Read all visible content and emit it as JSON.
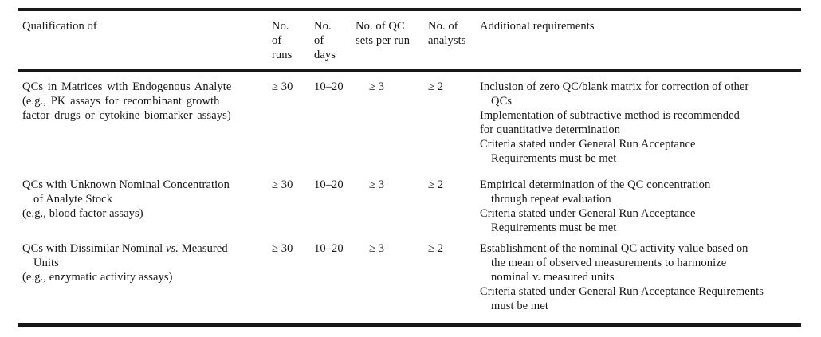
{
  "table": {
    "columns": [
      {
        "id": "qualification",
        "label_lines": [
          "Qualification of"
        ]
      },
      {
        "id": "runs",
        "label_lines": [
          "No.",
          "of",
          "runs"
        ]
      },
      {
        "id": "days",
        "label_lines": [
          "No.",
          "of",
          "days"
        ]
      },
      {
        "id": "qc-sets",
        "label_lines": [
          "No. of QC",
          "sets per run"
        ]
      },
      {
        "id": "analysts",
        "label_lines": [
          "No. of",
          "analysts"
        ]
      },
      {
        "id": "additional",
        "label_lines": [
          "Additional requirements"
        ]
      }
    ],
    "rows": [
      {
        "qualification": [
          {
            "t": "QCs in Matrices with Endogenous Analyte"
          },
          {
            "t": "(e.g., PK assays for recombinant growth"
          },
          {
            "t": "factor drugs or cytokine biomarker assays)"
          }
        ],
        "no_of_runs": "≥ 30",
        "no_of_days": "10–20",
        "qc_sets_per_run": "≥ 3",
        "no_of_analysts": "≥ 2",
        "additional_requirements": [
          {
            "t": "Inclusion of zero QC/blank matrix for correction of other"
          },
          {
            "t": "QCs",
            "ind": true
          },
          {
            "t": "Implementation of subtractive method is recommended"
          },
          {
            "t": "for quantitative determination"
          },
          {
            "t": "Criteria stated under General Run Acceptance"
          },
          {
            "t": "Requirements must be met",
            "ind": true
          }
        ]
      },
      {
        "qualification": [
          {
            "t": "QCs with Unknown Nominal Concentration"
          },
          {
            "t": "of Analyte Stock",
            "ind": true
          },
          {
            "t": "(e.g., blood factor assays)"
          }
        ],
        "no_of_runs": "≥ 30",
        "no_of_days": "10–20",
        "qc_sets_per_run": "≥ 3",
        "no_of_analysts": "≥ 2",
        "additional_requirements": [
          {
            "t": "Empirical determination of the QC concentration"
          },
          {
            "t": "through repeat evaluation",
            "ind": true
          },
          {
            "t": "Criteria stated under General Run Acceptance"
          },
          {
            "t": "Requirements must be met",
            "ind": true
          }
        ]
      },
      {
        "qualification": [
          {
            "seg": [
              {
                "t": "QCs with Dissimilar Nominal "
              },
              {
                "t": "vs.",
                "it": true
              },
              {
                "t": " Measured"
              }
            ]
          },
          {
            "t": "Units",
            "ind": true
          },
          {
            "t": "(e.g., enzymatic activity assays)"
          }
        ],
        "no_of_runs": "≥ 30",
        "no_of_days": "10–20",
        "qc_sets_per_run": "≥ 3",
        "no_of_analysts": "≥ 2",
        "additional_requirements": [
          {
            "t": "Establishment of the nominal QC activity value based on"
          },
          {
            "t": "the mean of observed measurements to harmonize",
            "ind": true
          },
          {
            "t": "nominal v. measured units",
            "ind": true
          },
          {
            "t": "Criteria stated under General Run Acceptance Requirements"
          },
          {
            "t": "must be met",
            "ind": true
          }
        ]
      }
    ]
  }
}
